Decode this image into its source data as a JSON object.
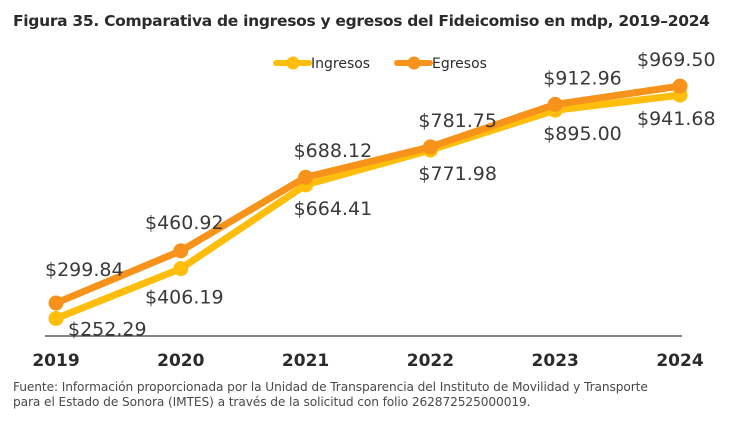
{
  "chart_data": {
    "type": "line",
    "title": "Figura 35. Comparativa de ingresos y egresos del Fideicomiso en mdp, 2019–2024",
    "xlabel": "",
    "ylabel": "",
    "categories": [
      "2019",
      "2020",
      "2021",
      "2022",
      "2023",
      "2024"
    ],
    "series": [
      {
        "name": "Ingresos",
        "color": "#FFBE0B",
        "values": [
          252.29,
          406.19,
          664.41,
          771.98,
          895.0,
          941.68
        ],
        "labels": [
          "$252.29",
          "$406.19",
          "$664.41",
          "$771.98",
          "$895.00",
          "$941.68"
        ],
        "label_position": "below"
      },
      {
        "name": "Egresos",
        "color": "#F7931A",
        "values": [
          299.84,
          460.92,
          688.12,
          781.75,
          912.96,
          969.5
        ],
        "labels": [
          "$299.84",
          "$460.92",
          "$688.12",
          "$781.75",
          "$912.96",
          "$969.50"
        ],
        "label_position": "above"
      }
    ],
    "ylim": [
      0,
      1000
    ],
    "grid": false,
    "legend": "top-center"
  },
  "footer": {
    "source_line1": "Fuente: Información proporcionada por la Unidad de Transparencia del Instituto de Movilidad y Transporte",
    "source_line2": "para el Estado de Sonora (IMTES) a través de la solicitud con folio 262872525000019."
  }
}
